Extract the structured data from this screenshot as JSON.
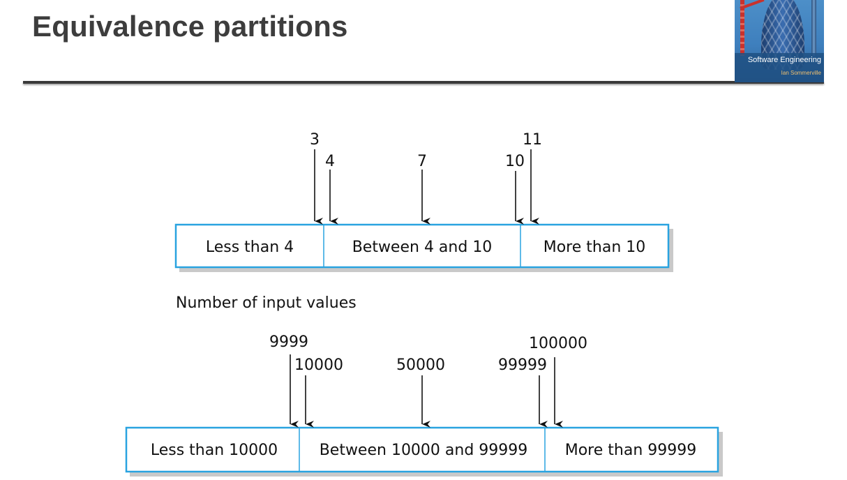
{
  "title": "Equivalence partitions",
  "book": {
    "title": "Software Engineering",
    "author": "Ian Sommerville"
  },
  "colors": {
    "partition_border": "#29a3e0",
    "partition_shadow": "#c9c9c9",
    "title_text": "#3d3d3d",
    "rule": "#3a3a3a"
  },
  "diagram": {
    "top": {
      "partitions": [
        "Less than 4",
        "Between 4 and 10",
        "More than 10"
      ],
      "markers": [
        "3",
        "4",
        "7",
        "10",
        "11"
      ]
    },
    "caption": "Number of input values",
    "bottom": {
      "partitions": [
        "Less than 10000",
        "Between 10000 and 99999",
        "More than 99999"
      ],
      "markers": [
        "9999",
        "10000",
        "50000",
        "99999",
        "100000"
      ]
    }
  }
}
